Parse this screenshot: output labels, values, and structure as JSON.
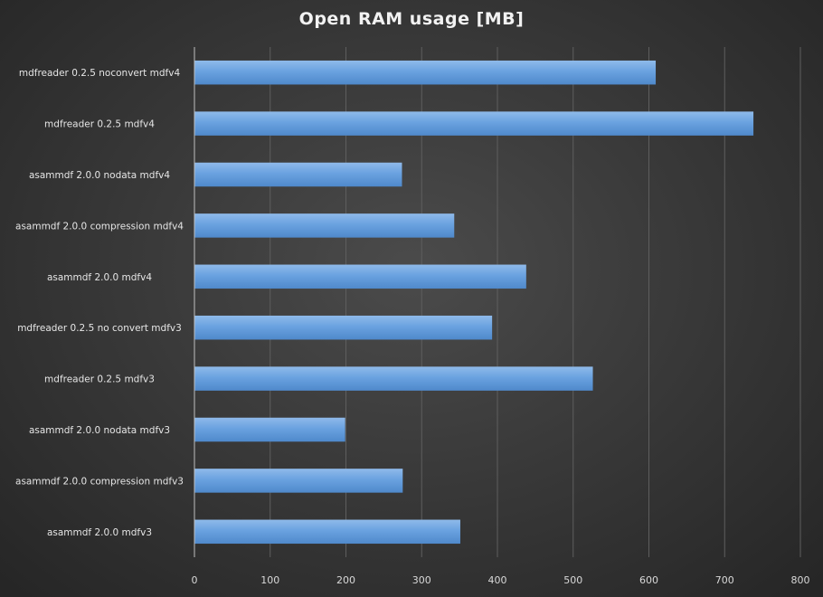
{
  "chart_data": {
    "type": "bar",
    "orientation": "horizontal",
    "title": "Open RAM usage [MB]",
    "xlabel": "",
    "ylabel": "",
    "categories": [
      "mdfreader 0.2.5 noconvert mdfv4",
      "mdfreader 0.2.5 mdfv4",
      "asammdf 2.0.0 nodata mdfv4",
      "asammdf 2.0.0 compression mdfv4",
      "asammdf 2.0.0 mdfv4",
      "mdfreader 0.2.5 no convert mdfv3",
      "mdfreader 0.2.5 mdfv3",
      "asammdf 2.0.0 nodata mdfv3",
      "asammdf 2.0.0 compression mdfv3",
      "asammdf 2.0.0 mdfv3"
    ],
    "values": [
      609,
      738,
      274,
      343,
      438,
      393,
      526,
      199,
      275,
      351
    ],
    "xlim": [
      0,
      800
    ],
    "xticks": [
      0,
      100,
      200,
      300,
      400,
      500,
      600,
      700,
      800
    ],
    "grid": "vertical",
    "legend": "none",
    "colors": {
      "bar_light": "#8fbaea",
      "bar_mid": "#6aa2e0",
      "bar_dark": "#4f89cb",
      "gridline": "#5e5e5e",
      "axis": "#bfbfbf",
      "text": "#e6e6e6"
    }
  }
}
